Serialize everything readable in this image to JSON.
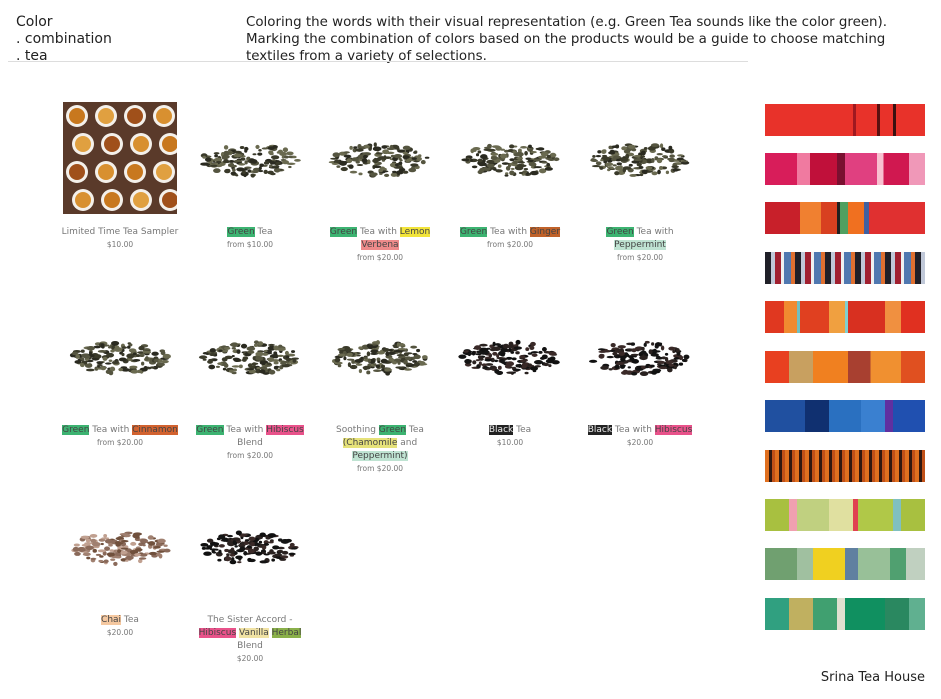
{
  "header": {
    "title_lines": [
      "Color",
      ". combination",
      ". tea"
    ],
    "description": "Coloring the words with their visual representation (e.g. Green Tea sounds like the color green). Marking the combination of colors based on the products would be a guide to choose matching textiles from a variety of selections."
  },
  "products": [
    {
      "name": [
        {
          "text": "Limited Time Tea Sampler"
        }
      ],
      "price": "$10.00"
    },
    {
      "name": [
        {
          "text": "Green",
          "color": "#3cb371"
        },
        {
          "text": " Tea"
        }
      ],
      "price": "from $10.00"
    },
    {
      "name": [
        {
          "text": "Green",
          "color": "#3cb371"
        },
        {
          "text": " Tea with "
        },
        {
          "text": "Lemon",
          "color": "#f2e43a"
        },
        {
          "text": " "
        },
        {
          "text": "Verbena",
          "color": "#ee8a8a"
        }
      ],
      "price": "from $20.00"
    },
    {
      "name": [
        {
          "text": "Green",
          "color": "#3cb371"
        },
        {
          "text": " Tea with "
        },
        {
          "text": "Ginger",
          "color": "#c0622a"
        }
      ],
      "price": "from $20.00"
    },
    {
      "name": [
        {
          "text": "Green",
          "color": "#3cb371"
        },
        {
          "text": " Tea with "
        },
        {
          "text": "Peppermint",
          "color": "#bfe3d2"
        }
      ],
      "price": "from $20.00"
    },
    {
      "name": [
        {
          "text": "Green",
          "color": "#3cb371"
        },
        {
          "text": " Tea with "
        },
        {
          "text": "Cinnamon",
          "color": "#d2622f"
        }
      ],
      "price": "from $20.00"
    },
    {
      "name": [
        {
          "text": "Green",
          "color": "#3cb371"
        },
        {
          "text": " Tea with "
        },
        {
          "text": "Hibiscus",
          "color": "#e8528a"
        },
        {
          "text": " Blend"
        }
      ],
      "price": "from $20.00"
    },
    {
      "name": [
        {
          "text": "Soothing "
        },
        {
          "text": "Green",
          "color": "#3cb371"
        },
        {
          "text": " Tea "
        },
        {
          "text": "(Chamomile",
          "color": "#e6e27a"
        },
        {
          "text": " and "
        },
        {
          "text": "Peppermint)",
          "color": "#bfe3d2"
        }
      ],
      "price": "from $20.00"
    },
    {
      "name": [
        {
          "text": "Black",
          "color": "#222222"
        },
        {
          "text": " Tea"
        }
      ],
      "price": "$10.00"
    },
    {
      "name": [
        {
          "text": "Black",
          "color": "#222222"
        },
        {
          "text": " Tea with "
        },
        {
          "text": "Hibiscus",
          "color": "#e8528a"
        }
      ],
      "price": "$20.00"
    },
    {
      "name": [
        {
          "text": "Chai",
          "color": "#f5c8a0"
        },
        {
          "text": " Tea"
        }
      ],
      "price": "$20.00"
    },
    {
      "name": [
        {
          "text": "The Sister Accord - "
        },
        {
          "text": "Hibiscus",
          "color": "#e8528a"
        },
        {
          "text": " "
        },
        {
          "text": "Vanilla",
          "color": "#f0e2a4"
        },
        {
          "text": " "
        },
        {
          "text": "Herbal",
          "color": "#8ab04a"
        },
        {
          "text": " Blend"
        }
      ],
      "price": "$20.00"
    }
  ],
  "footer": "Srina Tea House"
}
